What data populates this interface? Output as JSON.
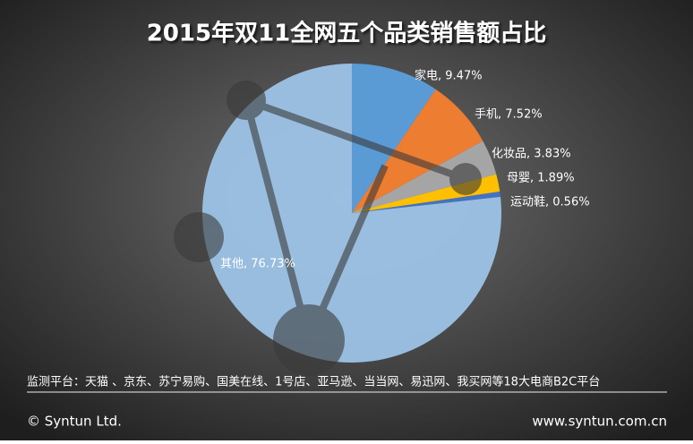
{
  "chart_data": {
    "type": "pie",
    "title": "2015年双11全网五个品类销售额占比",
    "values": [
      9.47,
      7.52,
      3.83,
      1.89,
      0.56,
      76.73
    ],
    "value_labels": [
      "家电, 9.47%",
      "手机, 7.52%",
      "化妆品, 3.83%",
      "母婴, 1.89%",
      "运动鞋, 0.56%",
      "其他, 76.73%"
    ],
    "colors": [
      "#5b9bd5",
      "#ed7d31",
      "#a5a5a5",
      "#ffc000",
      "#4472c4",
      "#9dc3e6"
    ],
    "note": "监测平台：天猫 、京东、苏宁易购、国美在线、1号店、亚马逊、当当网、易迅网、我买网等18大电商B2C平台",
    "copyright": "© Syntun Ltd.",
    "website": "www.syntun.com.cn"
  }
}
